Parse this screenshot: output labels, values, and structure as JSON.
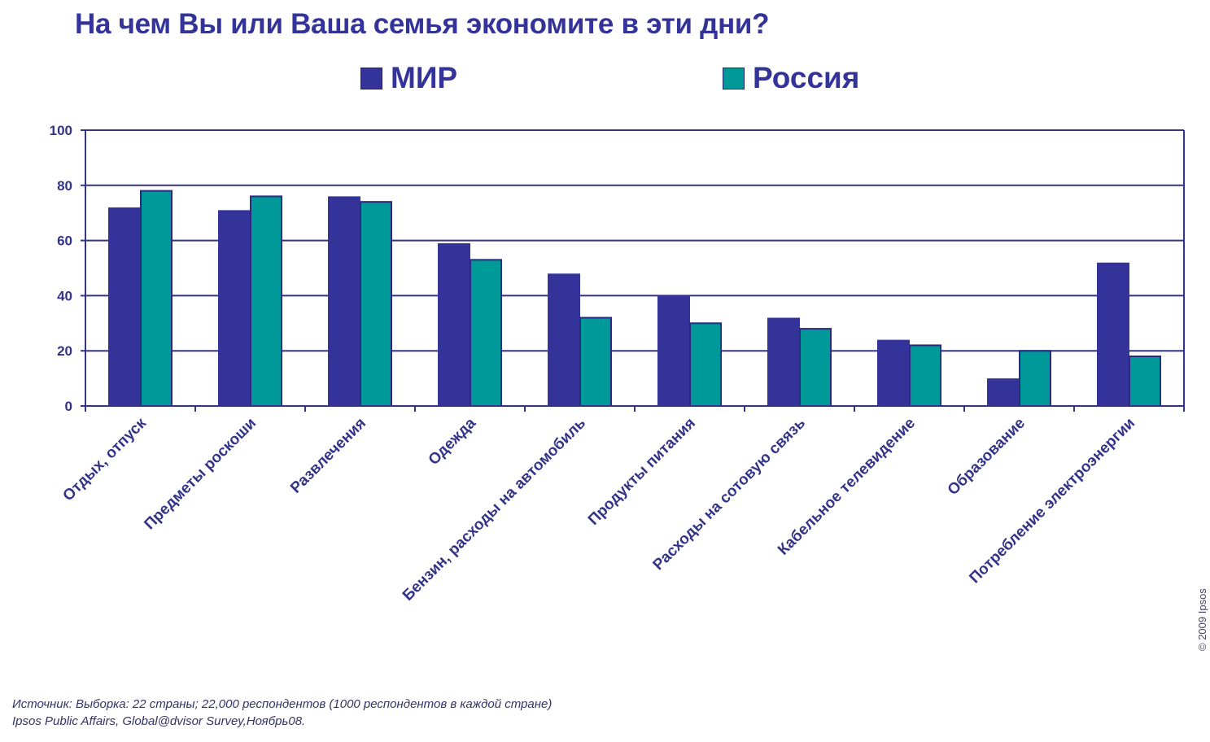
{
  "title": "На чем Вы или Ваша семья экономите в эти дни?",
  "legend": [
    {
      "label": "МИР",
      "color": "#333399"
    },
    {
      "label": "Россия",
      "color": "#009999"
    }
  ],
  "source_lines": [
    "Источник: Выборка: 22 страны; 22,000 респондентов (1000 респондентов в каждой стране)",
    "Ipsos Public Affairs, Global@dvisor Survey,Ноябрь08."
  ],
  "copyright": "© 2009 Ipsos",
  "chart_data": {
    "type": "bar",
    "title": "На чем Вы или Ваша семья экономите в эти дни?",
    "xlabel": "",
    "ylabel": "",
    "ylim": [
      0,
      100
    ],
    "yticks": [
      0,
      20,
      40,
      60,
      80,
      100
    ],
    "grid": true,
    "legend_position": "top",
    "categories": [
      "Отдых, отпуск",
      "Предметы роскоши",
      "Развлечения",
      "Одежда",
      "Бензин, расходы на автомобиль",
      "Продукты питания",
      "Расходы на сотовую связь",
      "Кабельное телевидение",
      "Образование",
      "Потребление электроэнергии"
    ],
    "series": [
      {
        "name": "МИР",
        "color": "#333399",
        "values": [
          72,
          71,
          76,
          59,
          48,
          40,
          32,
          24,
          10,
          52
        ]
      },
      {
        "name": "Россия",
        "color": "#009999",
        "values": [
          78,
          76,
          74,
          53,
          32,
          30,
          28,
          22,
          20,
          18
        ]
      }
    ]
  }
}
